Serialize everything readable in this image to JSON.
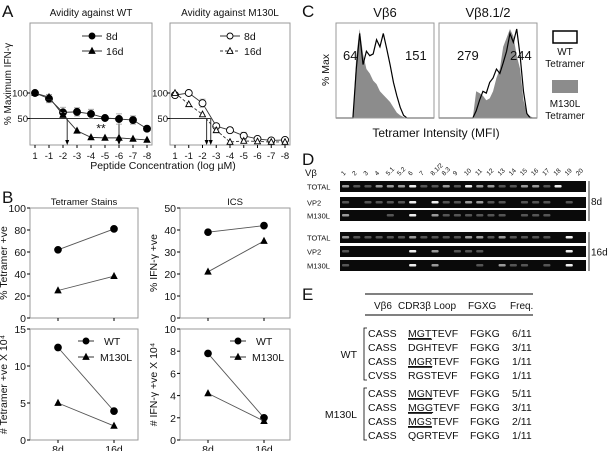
{
  "panel_labels": {
    "a": "A",
    "b": "B",
    "c": "C",
    "d": "D",
    "e": "E"
  },
  "chart_data": [
    {
      "id": "A-WT",
      "type": "line",
      "title": "Avidity against WT",
      "ylabel": "% Maximum IFN-γ",
      "xlabel": "Peptide Concentration (log µM)",
      "categories": [
        "1",
        "-1",
        "-2",
        "-3",
        "-4",
        "-5",
        "-6",
        "-7",
        "-8"
      ],
      "ylim": [
        0,
        120
      ],
      "yticks": [
        50,
        100
      ],
      "series": [
        {
          "name": "8d",
          "marker": "circle-filled",
          "dash": false,
          "values": [
            100,
            89,
            62,
            63,
            59,
            51,
            49,
            47,
            30
          ],
          "errors": [
            0,
            8,
            10,
            8,
            9,
            0,
            10,
            8,
            0
          ]
        },
        {
          "name": "16d",
          "marker": "triangle-filled",
          "dash": false,
          "values": [
            100,
            92,
            57,
            26,
            13,
            12,
            12,
            10,
            8
          ],
          "errors": [
            0,
            5,
            5,
            0,
            0,
            0,
            0,
            0,
            0
          ]
        }
      ],
      "ec50_markers": [
        2.3,
        6.0
      ],
      "annotation": "**"
    },
    {
      "id": "A-M130L",
      "type": "line",
      "title": "Avidity against M130L",
      "categories": [
        "1",
        "-1",
        "-2",
        "-3",
        "-4",
        "-5",
        "-6",
        "-7",
        "-8"
      ],
      "ylim": [
        0,
        120
      ],
      "yticks": [
        50,
        100
      ],
      "series": [
        {
          "name": "8d",
          "marker": "circle-open",
          "dash": false,
          "values": [
            96,
            100,
            80,
            35,
            27,
            16,
            10,
            7,
            8
          ],
          "errors": [
            4,
            0,
            8,
            0,
            5,
            7,
            0,
            0,
            0
          ]
        },
        {
          "name": "16d",
          "marker": "triangle-open",
          "dash": true,
          "values": [
            100,
            78,
            58,
            27,
            4,
            6,
            5,
            4,
            4
          ],
          "errors": [
            0,
            0,
            0,
            5,
            0,
            0,
            0,
            0,
            0
          ]
        }
      ],
      "ec50_markers": [
        2.3,
        2.6
      ]
    },
    {
      "id": "B-tet-pct",
      "type": "line",
      "title": "Tetramer Stains",
      "ylabel": "% Tetramer +ve",
      "categories": [
        "8d",
        "16d"
      ],
      "ylim": [
        0,
        100
      ],
      "yticks": [
        0,
        20,
        40,
        60,
        80,
        100
      ],
      "series": [
        {
          "name": "WT",
          "marker": "circle-filled",
          "values": [
            62,
            81
          ]
        },
        {
          "name": "M130L",
          "marker": "triangle-filled",
          "values": [
            25,
            38
          ]
        }
      ]
    },
    {
      "id": "B-ics-pct",
      "type": "line",
      "title": "ICS",
      "ylabel": "% IFN-γ +ve",
      "categories": [
        "8d",
        "16d"
      ],
      "ylim": [
        0,
        50
      ],
      "yticks": [
        0,
        10,
        20,
        30,
        40,
        50
      ],
      "series": [
        {
          "name": "WT",
          "marker": "circle-filled",
          "values": [
            39,
            42
          ]
        },
        {
          "name": "M130L",
          "marker": "triangle-filled",
          "values": [
            21,
            35
          ]
        }
      ]
    },
    {
      "id": "B-tet-num",
      "type": "line",
      "ylabel": "# Tetramer +ve X 10⁴",
      "categories": [
        "8d",
        "16d"
      ],
      "ylim": [
        0,
        15
      ],
      "yticks": [
        0,
        5,
        10,
        15
      ],
      "series": [
        {
          "name": "WT",
          "marker": "circle-filled",
          "values": [
            12.5,
            3.9
          ]
        },
        {
          "name": "M130L",
          "marker": "triangle-filled",
          "values": [
            5,
            1.9
          ]
        }
      ]
    },
    {
      "id": "B-ics-num",
      "type": "line",
      "ylabel": "# IFN-γ +ve X 10⁴",
      "categories": [
        "8d",
        "16d"
      ],
      "ylim": [
        0,
        10
      ],
      "yticks": [
        0,
        2,
        4,
        6,
        8,
        10
      ],
      "series": [
        {
          "name": "WT",
          "marker": "circle-filled",
          "values": [
            7.8,
            2.0
          ]
        },
        {
          "name": "M130L",
          "marker": "triangle-filled",
          "values": [
            4.2,
            1.7
          ]
        }
      ]
    },
    {
      "id": "C",
      "type": "area",
      "ylabel": "% Max",
      "xlabel": "Tetramer Intensity (MFI)",
      "legend": [
        {
          "name": "WT",
          "name2": "Tetramer",
          "style": "outline"
        },
        {
          "name": "M130L",
          "name2": "Tetramer",
          "style": "filled"
        }
      ],
      "panels": [
        {
          "title": "Vβ6",
          "mfi_m130l": "64",
          "mfi_wt": "151",
          "wt": [
            0,
            0,
            0,
            0,
            0,
            0,
            55,
            95,
            60,
            75,
            70,
            72,
            88,
            80,
            95,
            78,
            60,
            40,
            25,
            12,
            3,
            0,
            0,
            0,
            0,
            0,
            0,
            0,
            0,
            0
          ],
          "m130l": [
            0,
            0,
            0,
            0,
            0,
            0,
            70,
            100,
            72,
            55,
            50,
            42,
            38,
            30,
            26,
            22,
            18,
            12,
            6,
            3,
            1,
            0,
            0,
            0,
            0,
            0,
            0,
            0,
            0,
            0
          ]
        },
        {
          "title": "Vβ8.1/2",
          "mfi_m130l": "279",
          "mfi_wt": "244",
          "wt": [
            0,
            0,
            0,
            0,
            0,
            0,
            0,
            0,
            0,
            0,
            0,
            8,
            20,
            30,
            28,
            40,
            45,
            55,
            50,
            62,
            75,
            95,
            85,
            100,
            70,
            30,
            5,
            0,
            0,
            0
          ],
          "m130l": [
            0,
            0,
            0,
            0,
            0,
            0,
            0,
            0,
            0,
            0,
            0,
            30,
            28,
            25,
            20,
            22,
            30,
            45,
            55,
            80,
            90,
            100,
            92,
            70,
            55,
            20,
            5,
            2,
            0,
            0
          ]
        }
      ]
    },
    {
      "id": "D",
      "type": "heatmap",
      "row_header": "Vβ",
      "lanes": [
        "1",
        "2",
        "3",
        "4",
        "5.1",
        "5.2",
        "6",
        "7",
        "8.1/2",
        "8.3",
        "9",
        "10",
        "11",
        "12",
        "13",
        "14",
        "15",
        "16",
        "17",
        "18",
        "19",
        "20"
      ],
      "groups": [
        {
          "label": "8d",
          "rows": [
            {
              "label": "TOTAL",
              "bands": [
                2,
                1,
                1,
                2,
                2,
                2,
                3,
                1,
                1,
                2,
                1,
                3,
                2,
                2,
                1,
                1,
                2,
                2,
                1,
                3,
                0,
                0
              ]
            },
            {
              "label": "VP2",
              "bands": [
                1,
                0,
                1,
                1,
                1,
                1,
                3,
                0,
                3,
                1,
                1,
                2,
                2,
                1,
                1,
                0,
                1,
                1,
                1,
                0,
                1,
                0
              ]
            },
            {
              "label": "M130L",
              "bands": [
                2,
                0,
                0,
                0,
                1,
                0,
                3,
                0,
                2,
                1,
                1,
                1,
                1,
                1,
                1,
                0,
                1,
                1,
                1,
                0,
                0,
                0
              ]
            }
          ]
        },
        {
          "label": "16d",
          "rows": [
            {
              "label": "TOTAL",
              "bands": [
                2,
                1,
                1,
                1,
                1,
                1,
                2,
                1,
                1,
                1,
                1,
                2,
                2,
                1,
                2,
                1,
                1,
                1,
                1,
                0,
                3,
                0
              ]
            },
            {
              "label": "VP2",
              "bands": [
                1,
                0,
                0,
                0,
                0,
                0,
                3,
                0,
                2,
                0,
                1,
                1,
                1,
                0,
                0,
                0,
                0,
                0,
                0,
                0,
                3,
                0
              ]
            },
            {
              "label": "M130L",
              "bands": [
                1,
                0,
                0,
                0,
                0,
                0,
                3,
                0,
                2,
                0,
                0,
                0,
                1,
                0,
                2,
                1,
                1,
                0,
                1,
                0,
                3,
                0
              ]
            }
          ]
        }
      ]
    },
    {
      "id": "E",
      "type": "table",
      "columns": [
        "Vβ6",
        "CDR3β Loop",
        "FGXG",
        "Freq."
      ],
      "groups": [
        {
          "label": "WT",
          "rows": [
            {
              "vb": "CASS",
              "u": "MGT",
              "rest": "TEVF",
              "fgxg": "FGKG",
              "freq": "6/11",
              "underline": true
            },
            {
              "vb": "CASS",
              "u": "DGH",
              "rest": "TEVF",
              "fgxg": "FGKG",
              "freq": "3/11",
              "underline": false
            },
            {
              "vb": "CASS",
              "u": "MGR",
              "rest": "TEVF",
              "fgxg": "FGKG",
              "freq": "1/11",
              "underline": true
            },
            {
              "vb": "CVSS",
              "u": "RGS",
              "rest": "TEVF",
              "fgxg": "FGKG",
              "freq": "1/11",
              "underline": false
            }
          ]
        },
        {
          "label": "M130L",
          "rows": [
            {
              "vb": "CASS",
              "u": "MGN",
              "rest": "TEVF",
              "fgxg": "FGKG",
              "freq": "5/11",
              "underline": true
            },
            {
              "vb": "CASS",
              "u": "MGG",
              "rest": "TEVF",
              "fgxg": "FGKG",
              "freq": "3/11",
              "underline": true
            },
            {
              "vb": "CASS",
              "u": "MGS",
              "rest": "TEVF",
              "fgxg": "FGKG",
              "freq": "2/11",
              "underline": true
            },
            {
              "vb": "CASS",
              "u": "QGR",
              "rest": "TEVF",
              "fgxg": "FGKG",
              "freq": "1/11",
              "underline": false
            }
          ]
        }
      ]
    }
  ]
}
